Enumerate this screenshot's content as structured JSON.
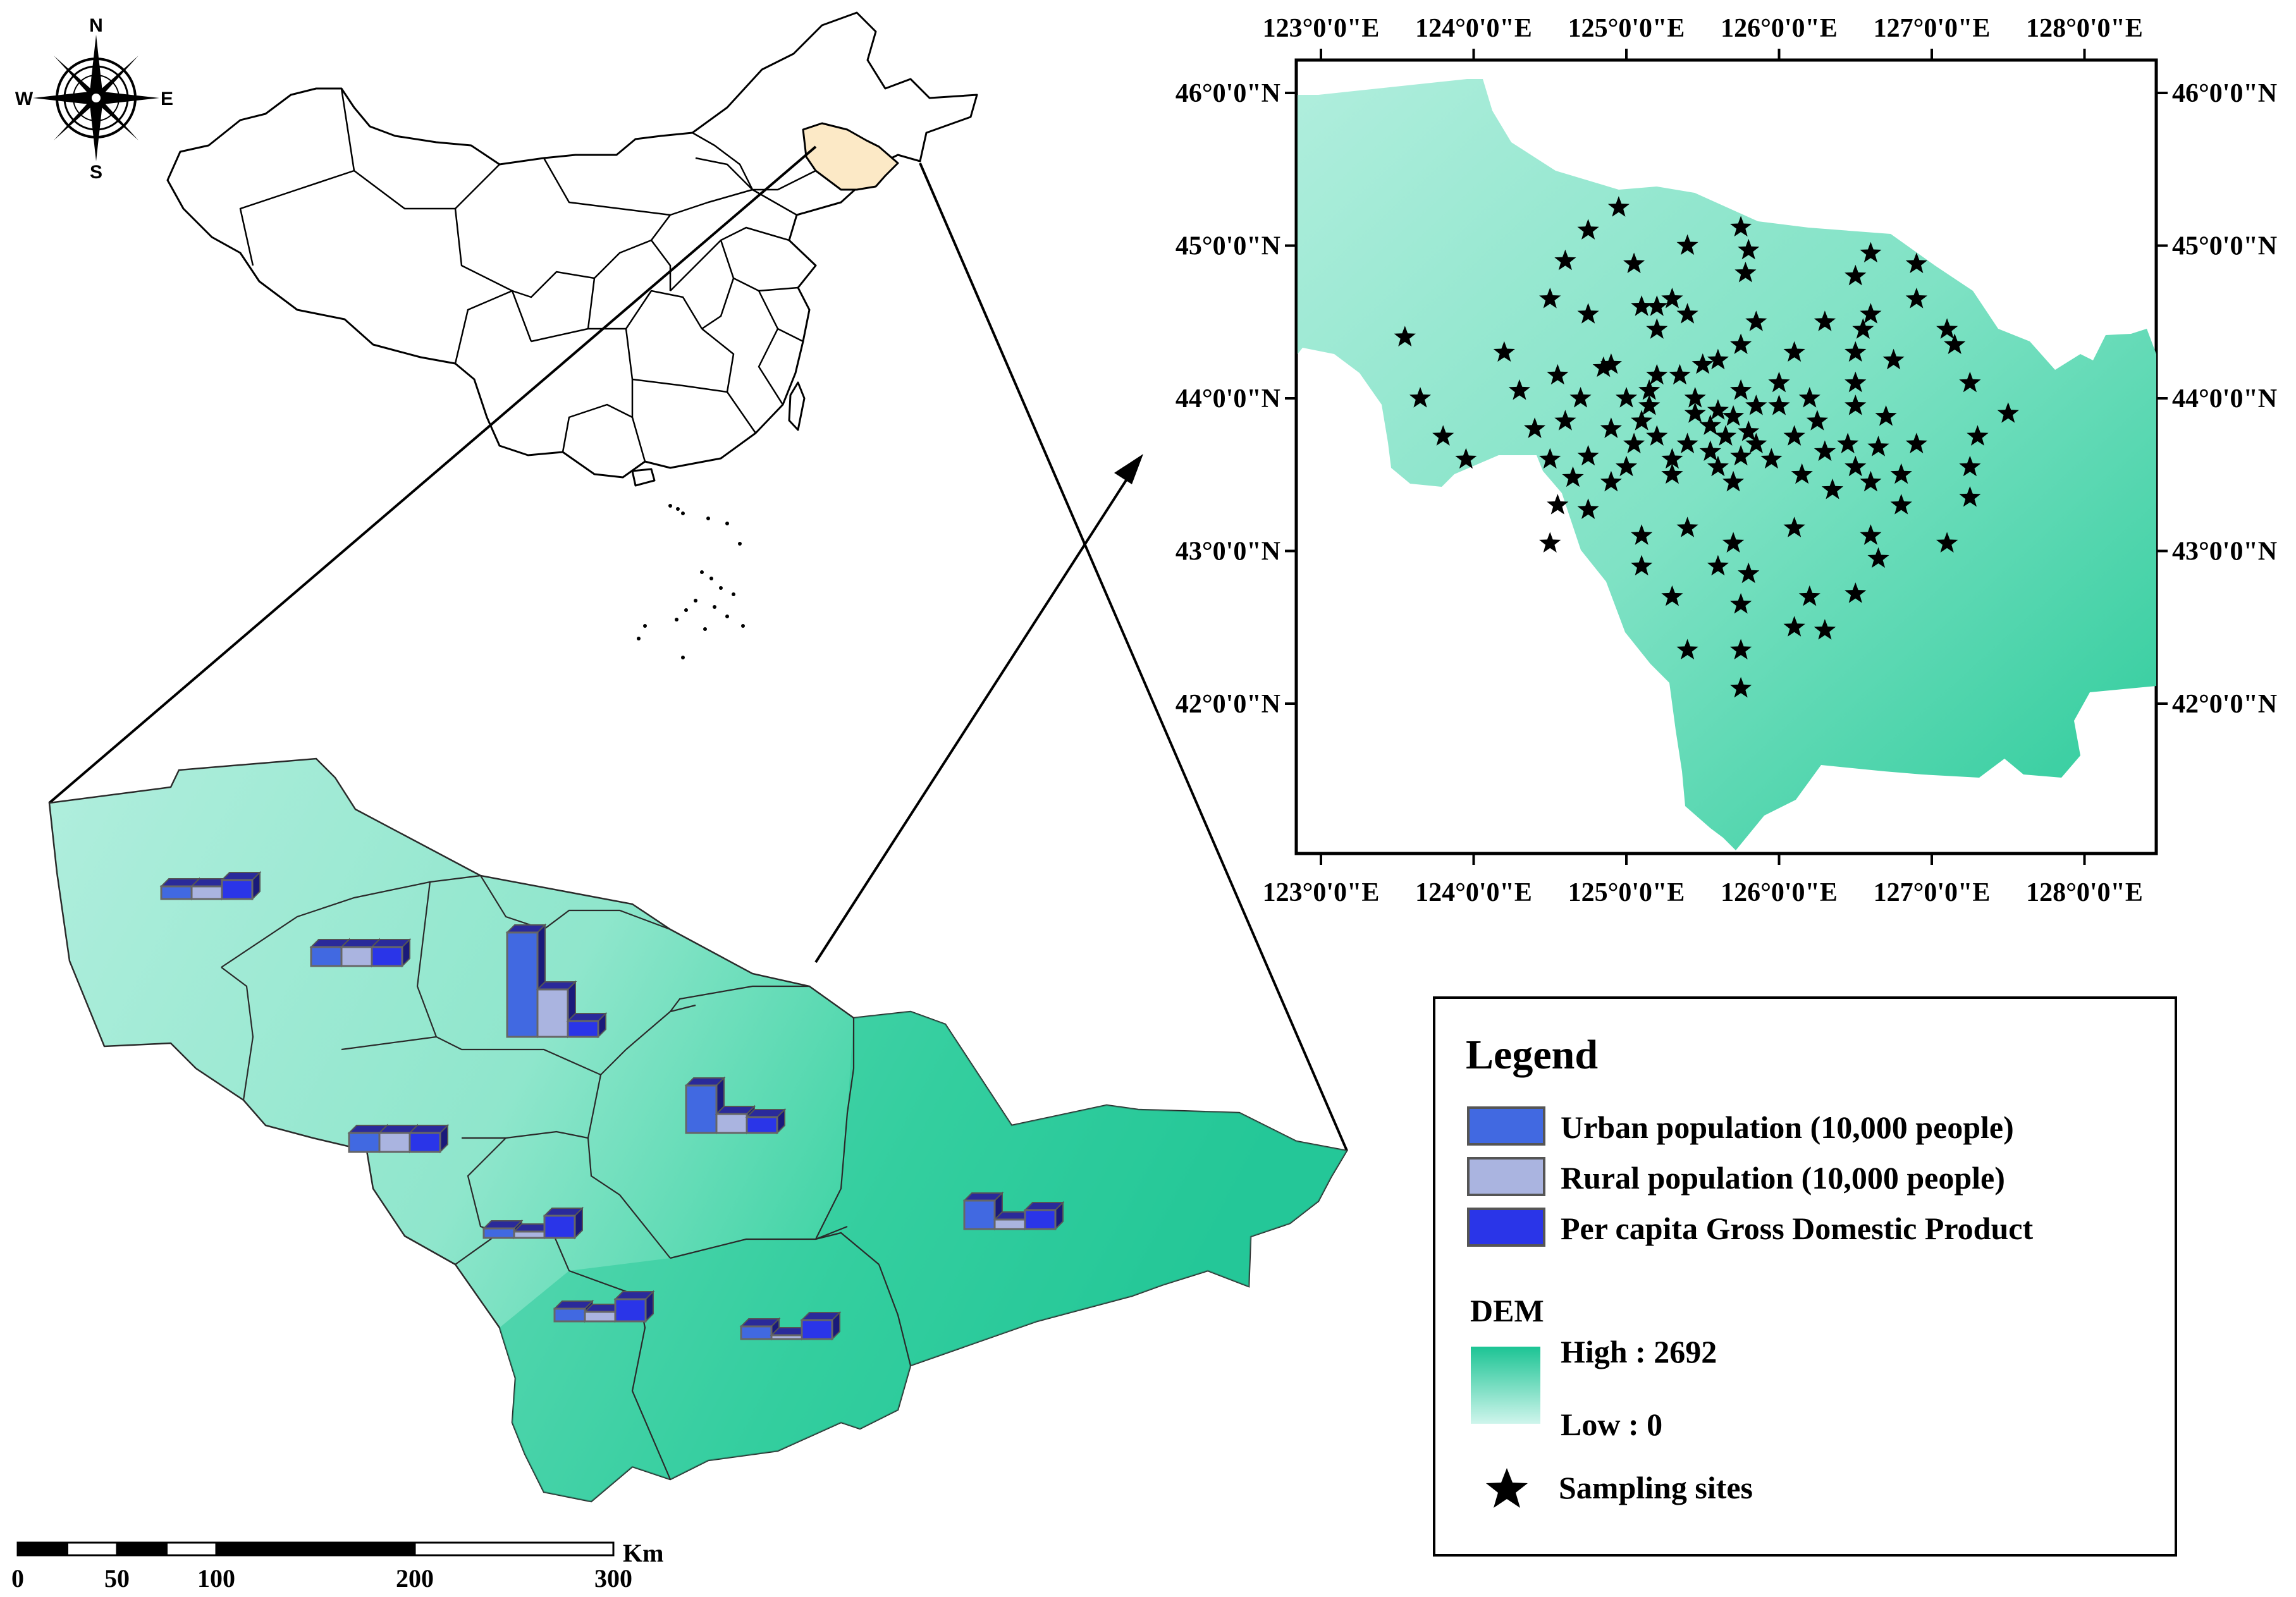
{
  "compass": {
    "n": "N",
    "s": "S",
    "e": "E",
    "w": "W"
  },
  "inset_map": {
    "lon_labels": [
      "123°0'0\"E",
      "124°0'0\"E",
      "125°0'0\"E",
      "126°0'0\"E",
      "127°0'0\"E",
      "128°0'0\"E"
    ],
    "lat_labels": [
      "46°0'0\"N",
      "45°0'0\"N",
      "44°0'0\"N",
      "43°0'0\"N",
      "42°0'0\"N"
    ],
    "lon_values": [
      123,
      124,
      125,
      126,
      127,
      128
    ],
    "lat_values": [
      46,
      45,
      44,
      43,
      42
    ],
    "sampling_sites": [
      [
        124.95,
        45.25
      ],
      [
        125.75,
        45.12
      ],
      [
        124.75,
        45.1
      ],
      [
        125.4,
        45.0
      ],
      [
        124.6,
        44.9
      ],
      [
        125.05,
        44.88
      ],
      [
        125.8,
        44.97
      ],
      [
        126.6,
        44.95
      ],
      [
        125.1,
        44.6
      ],
      [
        126.9,
        44.88
      ],
      [
        126.5,
        44.8
      ],
      [
        125.78,
        44.82
      ],
      [
        126.9,
        44.65
      ],
      [
        124.5,
        44.65
      ],
      [
        124.75,
        44.55
      ],
      [
        125.2,
        44.6
      ],
      [
        125.4,
        44.55
      ],
      [
        125.85,
        44.5
      ],
      [
        126.3,
        44.5
      ],
      [
        126.6,
        44.55
      ],
      [
        125.2,
        44.45
      ],
      [
        125.3,
        44.65
      ],
      [
        126.55,
        44.45
      ],
      [
        127.1,
        44.45
      ],
      [
        123.55,
        44.4
      ],
      [
        124.2,
        44.3
      ],
      [
        124.9,
        44.22
      ],
      [
        125.5,
        44.22
      ],
      [
        125.6,
        44.25
      ],
      [
        125.2,
        44.15
      ],
      [
        125.75,
        44.35
      ],
      [
        126.1,
        44.3
      ],
      [
        126.5,
        44.3
      ],
      [
        126.75,
        44.25
      ],
      [
        127.15,
        44.35
      ],
      [
        123.65,
        44.0
      ],
      [
        124.3,
        44.05
      ],
      [
        124.55,
        44.15
      ],
      [
        124.7,
        44.0
      ],
      [
        125.0,
        44.0
      ],
      [
        125.15,
        44.05
      ],
      [
        125.35,
        44.15
      ],
      [
        125.6,
        43.92
      ],
      [
        125.75,
        44.05
      ],
      [
        126.0,
        43.95
      ],
      [
        126.2,
        44.0
      ],
      [
        126.5,
        44.1
      ],
      [
        127.25,
        44.1
      ],
      [
        125.1,
        43.85
      ],
      [
        125.55,
        43.82
      ],
      [
        125.7,
        43.88
      ],
      [
        125.85,
        43.95
      ],
      [
        126.25,
        43.85
      ],
      [
        126.5,
        43.95
      ],
      [
        126.7,
        43.88
      ],
      [
        127.5,
        43.9
      ],
      [
        123.8,
        43.75
      ],
      [
        124.4,
        43.8
      ],
      [
        124.6,
        43.85
      ],
      [
        125.2,
        43.75
      ],
      [
        125.4,
        43.7
      ],
      [
        125.65,
        43.75
      ],
      [
        125.8,
        43.78
      ],
      [
        126.1,
        43.75
      ],
      [
        126.45,
        43.7
      ],
      [
        126.65,
        43.68
      ],
      [
        127.3,
        43.75
      ],
      [
        123.95,
        43.6
      ],
      [
        124.5,
        43.6
      ],
      [
        124.75,
        43.62
      ],
      [
        125.0,
        43.55
      ],
      [
        125.3,
        43.6
      ],
      [
        125.55,
        43.65
      ],
      [
        125.75,
        43.62
      ],
      [
        125.95,
        43.6
      ],
      [
        126.3,
        43.65
      ],
      [
        126.5,
        43.55
      ],
      [
        126.8,
        43.5
      ],
      [
        127.25,
        43.55
      ],
      [
        124.65,
        43.48
      ],
      [
        124.9,
        43.45
      ],
      [
        125.3,
        43.5
      ],
      [
        125.7,
        43.45
      ],
      [
        126.15,
        43.5
      ],
      [
        126.6,
        43.45
      ],
      [
        126.8,
        43.3
      ],
      [
        127.25,
        43.35
      ],
      [
        124.55,
        43.3
      ],
      [
        124.75,
        43.27
      ],
      [
        125.1,
        43.1
      ],
      [
        125.4,
        43.15
      ],
      [
        125.7,
        43.05
      ],
      [
        126.1,
        43.15
      ],
      [
        126.6,
        43.1
      ],
      [
        127.1,
        43.05
      ],
      [
        124.5,
        43.05
      ],
      [
        125.1,
        42.9
      ],
      [
        125.6,
        42.9
      ],
      [
        125.8,
        42.85
      ],
      [
        126.65,
        42.95
      ],
      [
        125.3,
        42.7
      ],
      [
        125.75,
        42.65
      ],
      [
        126.2,
        42.7
      ],
      [
        126.5,
        42.72
      ],
      [
        126.1,
        42.5
      ],
      [
        126.3,
        42.48
      ],
      [
        125.4,
        42.35
      ],
      [
        125.75,
        42.35
      ],
      [
        125.75,
        42.1
      ],
      [
        125.15,
        43.95
      ],
      [
        125.45,
        43.9
      ],
      [
        125.6,
        43.55
      ],
      [
        125.85,
        43.7
      ],
      [
        126.35,
        43.4
      ],
      [
        124.85,
        44.2
      ],
      [
        125.05,
        43.7
      ],
      [
        126.9,
        43.7
      ],
      [
        125.45,
        44.0
      ],
      [
        126.0,
        44.1
      ],
      [
        124.9,
        43.8
      ]
    ]
  },
  "legend": {
    "title": "Legend",
    "items": [
      {
        "label": "Urban population (10,000 people)",
        "color": "#4169E1"
      },
      {
        "label": "Rural population (10,000 people)",
        "color": "#AAB4E0"
      },
      {
        "label": "Per capita Gross Domestic Product",
        "color": "#2A35E8"
      }
    ],
    "dem_title": "DEM",
    "dem_high": "High : 2692",
    "dem_low": "Low : 0",
    "sites_label": "Sampling sites",
    "dem_colors": {
      "high": "#1CC494",
      "low": "#CFF5EC"
    }
  },
  "scale_bar": {
    "unit": "Km",
    "ticks": [
      "0",
      "50",
      "100",
      "200",
      "300"
    ],
    "tick_values": [
      0,
      50,
      100,
      200,
      300
    ],
    "max_km": 300
  },
  "region_bars": [
    {
      "urban": 0.2,
      "rural": 0.2,
      "gdp": 0.3
    },
    {
      "urban": 0.3,
      "rural": 0.3,
      "gdp": 0.3
    },
    {
      "urban": 1.65,
      "rural": 0.75,
      "gdp": 0.25
    },
    {
      "urban": 0.75,
      "rural": 0.3,
      "gdp": 0.25
    },
    {
      "urban": 0.3,
      "rural": 0.3,
      "gdp": 0.3
    },
    {
      "urban": 0.15,
      "rural": 0.1,
      "gdp": 0.35
    },
    {
      "urban": 0.2,
      "rural": 0.15,
      "gdp": 0.35
    },
    {
      "urban": 0.45,
      "rural": 0.15,
      "gdp": 0.3
    },
    {
      "urban": 0.2,
      "rural": 0.05,
      "gdp": 0.3
    }
  ]
}
